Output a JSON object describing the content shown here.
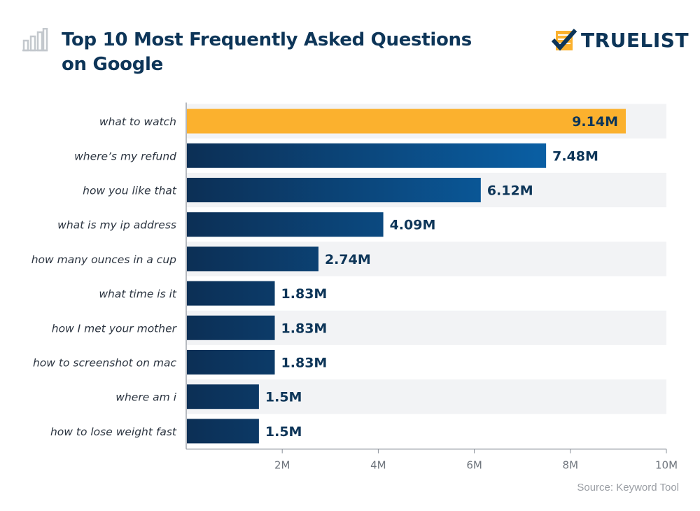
{
  "header": {
    "title": "Top 10 Most Frequently Asked Questions on Google",
    "title_icon": "bar-chart-icon",
    "logo_text": "TRUELIST",
    "logo_icon": "checklist-checkmark-icon"
  },
  "source": "Source: Keyword Tool",
  "colors": {
    "highlight": "#fbb12e",
    "bar_dark": "#0c2f55",
    "bar_light": "#0a5fa4",
    "band": "#f2f3f5",
    "text": "#0d3558"
  },
  "chart_data": {
    "type": "bar",
    "orientation": "horizontal",
    "title": "Top 10 Most Frequently Asked Questions on Google",
    "categories": [
      "what to watch",
      "where’s my refund",
      "how you like that",
      "what is my ip address",
      "how many ounces in a cup",
      "what time is it",
      "how I met your mother",
      "how to screenshot on mac",
      "where am i",
      "how to lose weight fast"
    ],
    "values": [
      9.14,
      7.48,
      6.12,
      4.09,
      2.74,
      1.83,
      1.83,
      1.83,
      1.5,
      1.5
    ],
    "data_labels": [
      "9.14M",
      "7.48M",
      "6.12M",
      "4.09M",
      "2.74M",
      "1.83M",
      "1.83M",
      "1.83M",
      "1.5M",
      "1.5M"
    ],
    "unit": "M",
    "xlim": [
      0,
      10
    ],
    "xticks": [
      2,
      4,
      6,
      8,
      10
    ],
    "xtick_labels": [
      "2M",
      "4M",
      "6M",
      "8M",
      "10M"
    ],
    "highlighted_index": 0,
    "grid": false
  }
}
